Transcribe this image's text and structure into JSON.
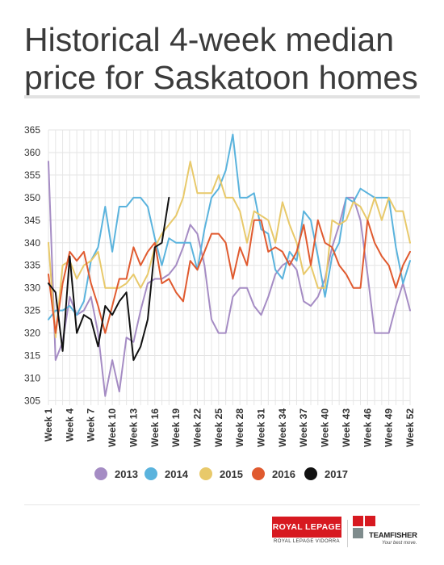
{
  "title": "Historical 4-week median price for Saskatoon homes",
  "chart_data": {
    "type": "line",
    "title": "Historical 4-week median price for Saskatoon homes",
    "xlabel": "",
    "ylabel": "",
    "ylim": [
      304,
      365
    ],
    "yticks": [
      305,
      310,
      315,
      320,
      325,
      330,
      335,
      340,
      345,
      350,
      355,
      360,
      365
    ],
    "xlim": [
      1,
      52
    ],
    "xtick_labels": [
      "Week 1",
      "Week 4",
      "Week 7",
      "Week 10",
      "Week 13",
      "Week 16",
      "Week 19",
      "Week 22",
      "Week 25",
      "Week 28",
      "Week 31",
      "Week 34",
      "Week 37",
      "Week 40",
      "Week 43",
      "Week 46",
      "Week 49",
      "Week 52"
    ],
    "grid": true,
    "legend_position": "bottom",
    "series": [
      {
        "name": "2013",
        "color": "#a58cc4",
        "values": [
          358,
          314,
          318,
          328,
          324,
          325,
          328,
          320,
          306,
          314,
          307,
          319,
          318,
          325,
          331,
          332,
          332,
          333,
          335,
          339,
          344,
          342,
          335,
          323,
          320,
          320,
          328,
          330,
          330,
          326,
          324,
          328,
          333,
          335,
          336,
          334,
          327,
          326,
          328,
          332,
          339,
          344,
          350,
          350,
          345,
          333,
          320,
          320,
          320,
          326,
          331,
          325
        ]
      },
      {
        "name": "2014",
        "color": "#5ab3dd",
        "values": [
          323,
          325,
          325,
          326,
          324,
          327,
          336,
          339,
          348,
          338,
          348,
          348,
          350,
          350,
          348,
          341,
          335,
          341,
          340,
          340,
          340,
          334,
          343,
          350,
          352,
          356,
          364,
          350,
          350,
          351,
          343,
          342,
          334,
          332,
          338,
          336,
          347,
          345,
          337,
          328,
          337,
          340,
          350,
          349,
          352,
          351,
          350,
          350,
          350,
          339,
          331,
          336
        ]
      },
      {
        "name": "2015",
        "color": "#e8c96a",
        "values": [
          340,
          319,
          335,
          336,
          332,
          335,
          336,
          338,
          330,
          330,
          330,
          331,
          333,
          330,
          333,
          339,
          342,
          344,
          346,
          350,
          358,
          351,
          351,
          351,
          355,
          350,
          350,
          347,
          340,
          347,
          346,
          345,
          340,
          349,
          344,
          340,
          333,
          335,
          330,
          330,
          345,
          344,
          345,
          349,
          348,
          345,
          350,
          345,
          350,
          347,
          347,
          340
        ]
      },
      {
        "name": "2016",
        "color": "#e05a2f",
        "values": [
          333,
          320,
          331,
          338,
          336,
          338,
          331,
          326,
          320,
          326,
          332,
          332,
          339,
          335,
          338,
          340,
          331,
          332,
          329,
          327,
          336,
          334,
          338,
          342,
          342,
          340,
          332,
          339,
          335,
          345,
          345,
          338,
          339,
          338,
          335,
          338,
          344,
          335,
          345,
          340,
          339,
          335,
          333,
          330,
          330,
          345,
          340,
          337,
          335,
          330,
          335,
          338
        ]
      },
      {
        "name": "2017",
        "color": "#111111",
        "values": [
          331,
          329,
          316,
          337,
          320,
          324,
          323,
          317,
          326,
          324,
          327,
          329,
          314,
          317,
          323,
          339,
          340,
          350,
          null,
          null,
          null,
          null,
          null,
          null,
          null,
          null,
          null,
          null,
          null,
          null,
          null,
          null,
          null,
          null,
          null,
          null,
          null,
          null,
          null,
          null,
          null,
          null,
          null,
          null,
          null,
          null,
          null,
          null,
          null,
          null,
          null,
          null
        ]
      }
    ]
  },
  "logos": {
    "royal_lepage": "ROYAL LEPAGE",
    "royal_lepage_sub": "ROYAL LEPAGE VIDORRA",
    "team_fisher": "TEAMFISHER",
    "team_fisher_tagline": "Your best move."
  }
}
